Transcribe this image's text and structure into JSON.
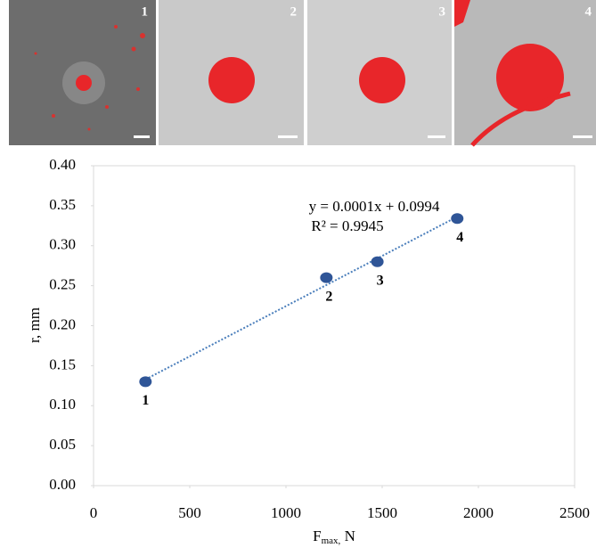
{
  "panels": [
    {
      "label": "1"
    },
    {
      "label": "2"
    },
    {
      "label": "3"
    },
    {
      "label": "4"
    }
  ],
  "chart_data": {
    "type": "scatter",
    "xlabel": [
      "F",
      "max,",
      " N"
    ],
    "ylabel": "r, mm",
    "x": [
      270,
      1210,
      1475,
      1890
    ],
    "values": [
      0.13,
      0.26,
      0.28,
      0.334
    ],
    "point_labels": [
      "1",
      "2",
      "3",
      "4"
    ],
    "color": "#2f5597",
    "trendline": {
      "color": "#4a7ebb",
      "equation": "y = 0.0001x + 0.0994",
      "r2": "R² = 0.9945"
    },
    "xlim": [
      0,
      2500
    ],
    "xticks": [
      0,
      500,
      1000,
      1500,
      2000,
      2500
    ],
    "ylim": [
      0,
      0.4
    ],
    "yticks": [
      {
        "value": 0,
        "label": "0.00"
      },
      {
        "value": 0.05,
        "label": "0.05"
      },
      {
        "value": 0.1,
        "label": "0.10"
      },
      {
        "value": 0.15,
        "label": "0.15"
      },
      {
        "value": 0.2,
        "label": "0.20"
      },
      {
        "value": 0.25,
        "label": "0.25"
      },
      {
        "value": 0.3,
        "label": "0.30"
      },
      {
        "value": 0.35,
        "label": "0.35"
      },
      {
        "value": 0.4,
        "label": "0.40"
      }
    ]
  }
}
